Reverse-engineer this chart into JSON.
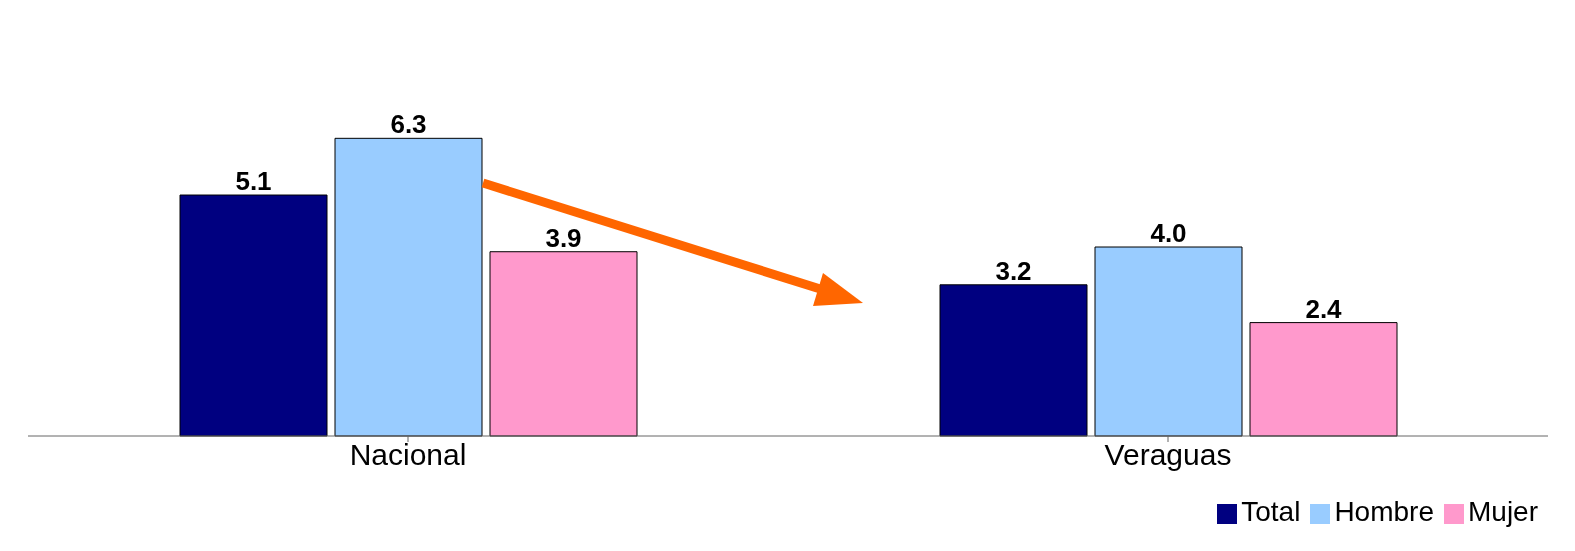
{
  "chart_data": {
    "type": "bar",
    "categories": [
      "Nacional",
      "Veraguas"
    ],
    "series": [
      {
        "name": "Total",
        "color": "#000080",
        "values": [
          5.1,
          3.2
        ],
        "value_labels": [
          "5.1",
          "3.2"
        ]
      },
      {
        "name": "Hombre",
        "color": "#99ccff",
        "values": [
          6.3,
          4.0
        ],
        "value_labels": [
          "6.3",
          "4.0"
        ]
      },
      {
        "name": "Mujer",
        "color": "#ff99cc",
        "values": [
          3.9,
          2.4
        ],
        "value_labels": [
          "3.9",
          "2.4"
        ]
      }
    ],
    "legend": "bottom right",
    "grid": false
  }
}
